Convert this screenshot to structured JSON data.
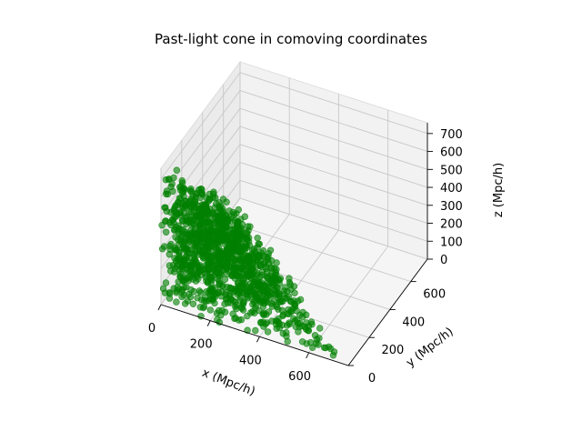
{
  "chart_data": {
    "type": "scatter",
    "projection": "3d",
    "title": "Past-light cone in comoving coordinates",
    "xlabel": "x (Mpc/h)",
    "ylabel": "y (Mpc/h)",
    "zlabel": "z (Mpc/h)",
    "xlim": [
      0,
      760
    ],
    "ylim": [
      0,
      760
    ],
    "zlim": [
      0,
      760
    ],
    "x_ticks": [
      0,
      200,
      400,
      600
    ],
    "y_ticks": [
      0,
      200,
      400,
      600
    ],
    "z_ticks": [
      0,
      100,
      200,
      300,
      400,
      500,
      600,
      700
    ],
    "grid": true,
    "marker_color": "#008000",
    "marker_alpha": 0.6,
    "series": [
      {
        "point_count": 1200,
        "distribution": "points filling the octant with x+y+z <= 750 Mpc/h",
        "points": [
          [
            18,
            40,
            12
          ],
          [
            90,
            20,
            30
          ],
          [
            150,
            60,
            8
          ],
          [
            230,
            30,
            20
          ],
          [
            310,
            15,
            40
          ],
          [
            380,
            80,
            10
          ],
          [
            450,
            40,
            60
          ],
          [
            520,
            100,
            30
          ],
          [
            600,
            60,
            50
          ],
          [
            660,
            50,
            20
          ],
          [
            40,
            150,
            80
          ],
          [
            120,
            200,
            40
          ],
          [
            200,
            250,
            100
          ],
          [
            280,
            180,
            140
          ],
          [
            350,
            300,
            60
          ],
          [
            420,
            220,
            90
          ],
          [
            500,
            180,
            40
          ],
          [
            560,
            120,
            60
          ],
          [
            30,
            300,
            150
          ],
          [
            100,
            400,
            120
          ],
          [
            180,
            350,
            200
          ],
          [
            250,
            420,
            50
          ],
          [
            300,
            380,
            40
          ],
          [
            60,
            500,
            100
          ],
          [
            120,
            550,
            60
          ],
          [
            40,
            650,
            40
          ],
          [
            200,
            100,
            300
          ],
          [
            260,
            140,
            250
          ],
          [
            320,
            200,
            200
          ],
          [
            150,
            150,
            400
          ],
          [
            100,
            220,
            380
          ],
          [
            220,
            60,
            420
          ],
          [
            50,
            100,
            550
          ],
          [
            120,
            80,
            520
          ],
          [
            60,
            40,
            650
          ],
          [
            80,
            180,
            300
          ],
          [
            180,
            300,
            250
          ],
          [
            400,
            100,
            220
          ],
          [
            30,
            80,
            700
          ],
          [
            300,
            300,
            100
          ]
        ]
      }
    ]
  }
}
